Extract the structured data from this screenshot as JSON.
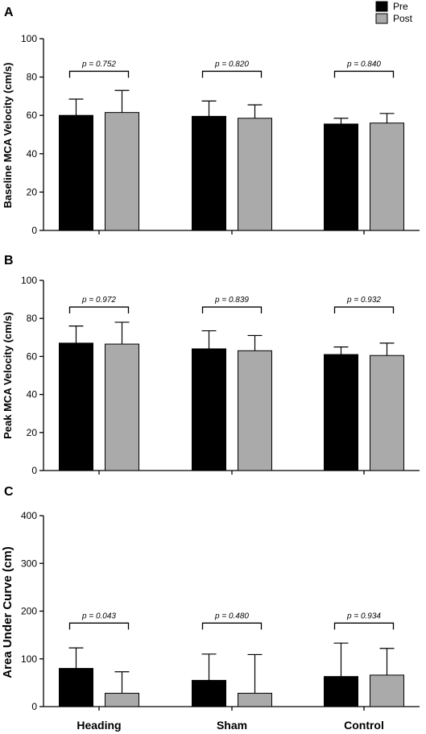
{
  "legend": {
    "items": [
      {
        "label": "Pre",
        "color": "#000000"
      },
      {
        "label": "Post",
        "color": "#aaaaaa"
      }
    ],
    "placement": "top-right"
  },
  "categories": [
    "Heading",
    "Sham",
    "Control"
  ],
  "chart_data": [
    {
      "panel": "A",
      "type": "bar",
      "ylabel": "Baseline MCA Velocity (cm/s)",
      "ylim": [
        0,
        100
      ],
      "yticks": [
        "0",
        "20",
        "40",
        "60",
        "80",
        "100"
      ],
      "yticks_values": [
        0,
        20,
        40,
        60,
        80,
        100
      ],
      "categories": [
        "Heading",
        "Sham",
        "Control"
      ],
      "series": [
        {
          "name": "Pre",
          "color": "#000000",
          "values": [
            60,
            59.5,
            55.5
          ],
          "errors": [
            8.5,
            8,
            3
          ]
        },
        {
          "name": "Post",
          "color": "#aaaaaa",
          "values": [
            61.5,
            58.5,
            56
          ],
          "errors": [
            11.5,
            7,
            5
          ]
        }
      ],
      "pvalues": [
        "p = 0.752",
        "p = 0.820",
        "p = 0.840"
      ],
      "bracket_y": 83
    },
    {
      "panel": "B",
      "type": "bar",
      "ylabel": "Peak MCA Velocity (cm/s)",
      "ylim": [
        0,
        100
      ],
      "yticks": [
        "0",
        "20",
        "40",
        "60",
        "80",
        "100"
      ],
      "yticks_values": [
        0,
        20,
        40,
        60,
        80,
        100
      ],
      "categories": [
        "Heading",
        "Sham",
        "Control"
      ],
      "series": [
        {
          "name": "Pre",
          "color": "#000000",
          "values": [
            67,
            64,
            61
          ],
          "errors": [
            9,
            9.5,
            4
          ]
        },
        {
          "name": "Post",
          "color": "#aaaaaa",
          "values": [
            66.5,
            63,
            60.5
          ],
          "errors": [
            11.5,
            8,
            6.5
          ]
        }
      ],
      "pvalues": [
        "p = 0.972",
        "p = 0.839",
        "p = 0.932"
      ],
      "bracket_y": 86
    },
    {
      "panel": "C",
      "type": "bar",
      "ylabel": "Area Under Curve (cm)",
      "ylim": [
        0,
        400
      ],
      "yticks": [
        "0",
        "100",
        "200",
        "300",
        "400"
      ],
      "yticks_values": [
        0,
        100,
        200,
        300,
        400
      ],
      "categories": [
        "Heading",
        "Sham",
        "Control"
      ],
      "series": [
        {
          "name": "Pre",
          "color": "#000000",
          "values": [
            80,
            55,
            63
          ],
          "errors": [
            43,
            55,
            70
          ]
        },
        {
          "name": "Post",
          "color": "#aaaaaa",
          "values": [
            28,
            28,
            66
          ],
          "errors": [
            45,
            81,
            56
          ]
        }
      ],
      "pvalues": [
        "p = 0.043",
        "p = 0.480",
        "p = 0.934"
      ],
      "bracket_y": 175
    }
  ]
}
